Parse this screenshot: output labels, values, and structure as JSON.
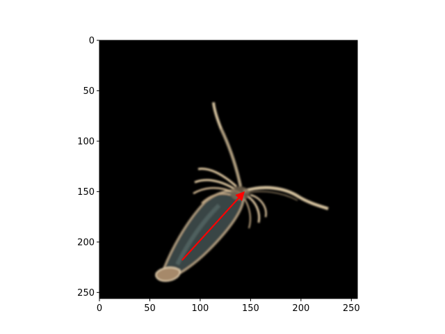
{
  "figure": {
    "x_axis": {
      "range": [
        0,
        256
      ],
      "ticks": [
        {
          "value": 0,
          "label": "0"
        },
        {
          "value": 50,
          "label": "50"
        },
        {
          "value": 100,
          "label": "100"
        },
        {
          "value": 150,
          "label": "150"
        },
        {
          "value": 200,
          "label": "200"
        },
        {
          "value": 250,
          "label": "250"
        }
      ]
    },
    "y_axis": {
      "range": [
        0,
        256
      ],
      "inverted": true,
      "ticks": [
        {
          "value": 0,
          "label": "0"
        },
        {
          "value": 50,
          "label": "50"
        },
        {
          "value": 100,
          "label": "100"
        },
        {
          "value": 150,
          "label": "150"
        },
        {
          "value": 200,
          "label": "200"
        },
        {
          "value": 250,
          "label": "250"
        }
      ]
    },
    "image": {
      "background_color": "#000000",
      "specimen_color": "#d9c7a8",
      "subject": "plankton specimen (copepod-like) on black background"
    },
    "arrow": {
      "color": "#ff0000",
      "from": [
        82,
        218
      ],
      "to": [
        143,
        151
      ]
    }
  }
}
